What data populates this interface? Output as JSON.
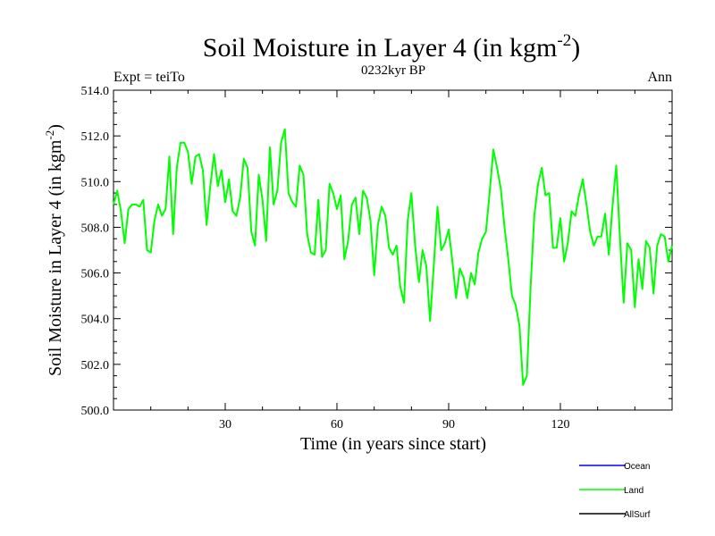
{
  "chart_data": {
    "type": "line",
    "title_main": "Soil Moisture in Layer 4 (in kgm",
    "title_sup": "-2",
    "title_close": ")",
    "subtitle_left": "Expt = teiTo",
    "subtitle_center": "0232kyr BP",
    "subtitle_right": "Ann",
    "xlabel": "Time (in years since start)",
    "ylabel_main": "Soil Moisture in Layer 4 (in kgm",
    "ylabel_sup": "-2",
    "ylabel_close": ")",
    "xlim": [
      0,
      150
    ],
    "ylim": [
      500,
      514
    ],
    "xticks": [
      30,
      60,
      90,
      120
    ],
    "xtick_labels": [
      "30",
      "60",
      "90",
      "120"
    ],
    "yticks": [
      500,
      502,
      504,
      506,
      508,
      510,
      512,
      514
    ],
    "ytick_labels": [
      "500.0",
      "502.0",
      "504.0",
      "506.0",
      "508.0",
      "510.0",
      "512.0",
      "514.0"
    ],
    "legend": [
      {
        "name": "Ocean",
        "color": "#0000ff"
      },
      {
        "name": "Land",
        "color": "#00ff00"
      },
      {
        "name": "AllSurf",
        "color": "#000000"
      }
    ],
    "series": [
      {
        "name": "Land",
        "color": "#00ff00",
        "x": [
          0,
          1,
          2,
          3,
          4,
          5,
          6,
          7,
          8,
          9,
          10,
          11,
          12,
          13,
          14,
          15,
          16,
          17,
          18,
          19,
          20,
          21,
          22,
          23,
          24,
          25,
          26,
          27,
          28,
          29,
          30,
          31,
          32,
          33,
          34,
          35,
          36,
          37,
          38,
          39,
          40,
          41,
          42,
          43,
          44,
          45,
          46,
          47,
          48,
          49,
          50,
          51,
          52,
          53,
          54,
          55,
          56,
          57,
          58,
          59,
          60,
          61,
          62,
          63,
          64,
          65,
          66,
          67,
          68,
          69,
          70,
          71,
          72,
          73,
          74,
          75,
          76,
          77,
          78,
          79,
          80,
          81,
          82,
          83,
          84,
          85,
          86,
          87,
          88,
          89,
          90,
          91,
          92,
          93,
          94,
          95,
          96,
          97,
          98,
          99,
          100,
          101,
          102,
          103,
          104,
          105,
          106,
          107,
          108,
          109,
          110,
          111,
          112,
          113,
          114,
          115,
          116,
          117,
          118,
          119,
          120,
          121,
          122,
          123,
          124,
          125,
          126,
          127,
          128,
          129,
          130,
          131,
          132,
          133,
          134,
          135,
          136,
          137,
          138,
          139,
          140,
          141,
          142,
          143,
          144,
          145,
          146,
          147,
          148,
          149,
          150
        ],
        "values": [
          509.0,
          509.6,
          508.7,
          507.3,
          508.8,
          509.0,
          509.0,
          508.9,
          509.2,
          507.0,
          506.9,
          508.3,
          509.0,
          508.5,
          508.8,
          511.1,
          507.7,
          510.6,
          511.7,
          511.7,
          511.3,
          509.9,
          511.1,
          511.2,
          510.5,
          508.1,
          509.8,
          511.2,
          509.8,
          510.5,
          509.1,
          510.1,
          508.7,
          508.5,
          509.3,
          511.0,
          510.6,
          507.8,
          507.2,
          510.3,
          509.2,
          507.4,
          511.5,
          509.0,
          509.6,
          511.7,
          512.3,
          509.5,
          509.1,
          508.9,
          510.7,
          510.3,
          507.7,
          506.9,
          506.8,
          509.2,
          506.7,
          507.0,
          509.9,
          509.5,
          508.8,
          509.4,
          506.6,
          507.4,
          509.0,
          509.3,
          507.7,
          509.6,
          509.3,
          508.3,
          505.9,
          508.1,
          508.9,
          508.5,
          507.1,
          506.8,
          507.2,
          505.4,
          504.7,
          508.3,
          509.5,
          507.2,
          505.6,
          507.0,
          506.3,
          503.9,
          506.3,
          508.9,
          507.0,
          507.3,
          507.9,
          506.5,
          504.9,
          506.2,
          505.8,
          504.9,
          506.0,
          505.5,
          506.9,
          507.5,
          507.8,
          509.5,
          511.4,
          510.6,
          509.7,
          508.0,
          506.6,
          505.0,
          504.6,
          503.7,
          501.1,
          501.5,
          505.4,
          508.5,
          509.9,
          510.6,
          509.4,
          509.5,
          507.1,
          507.1,
          508.4,
          506.5,
          507.3,
          508.7,
          508.5,
          509.4,
          510.1,
          509.0,
          507.8,
          507.2,
          507.6,
          507.6,
          508.6,
          506.8,
          508.9,
          510.7,
          507.5,
          504.7,
          507.3,
          507.0,
          504.5,
          506.6,
          505.3,
          507.4,
          507.1,
          505.1,
          507.2,
          507.7,
          507.6,
          506.5,
          507.2
        ]
      }
    ]
  }
}
